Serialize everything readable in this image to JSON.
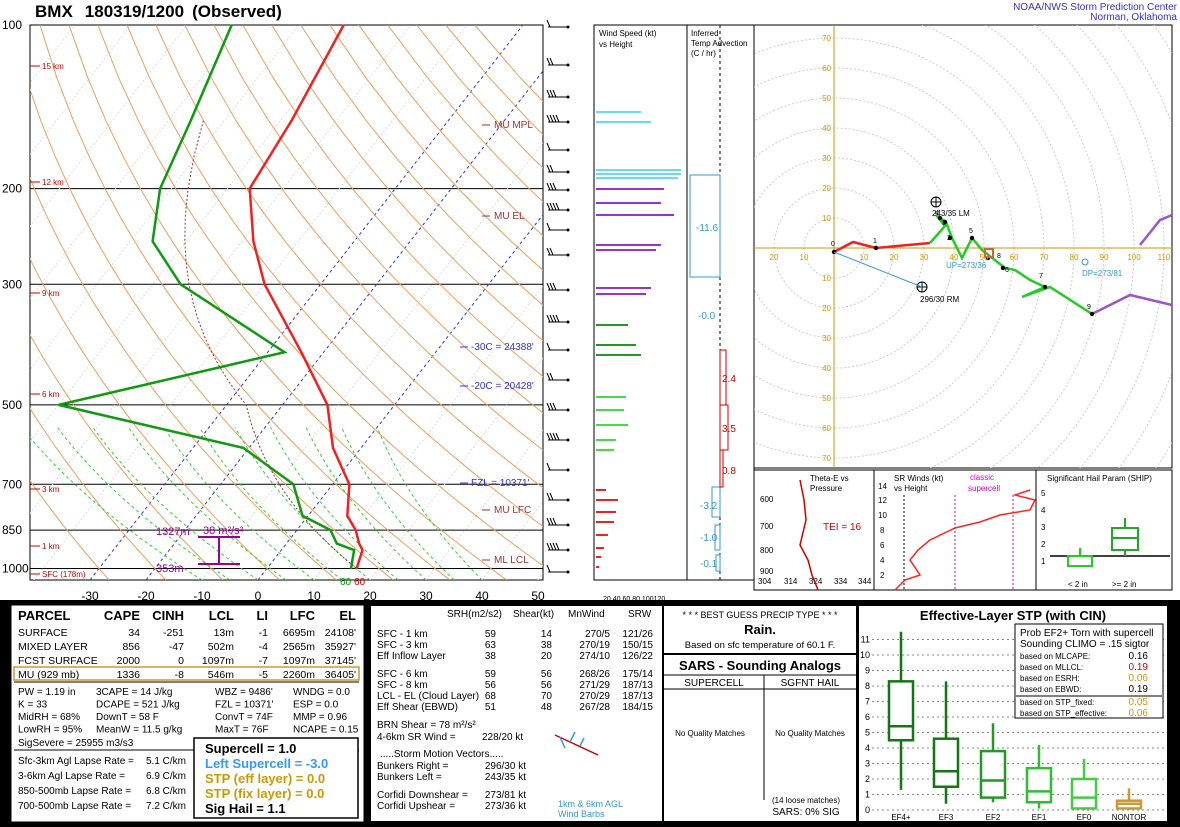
{
  "header": {
    "station": "BMX",
    "datetime": "180319/1200",
    "status": "(Observed)",
    "source_line1": "NOAA/NWS Storm Prediction Center",
    "source_line2": "Norman, Oklahoma"
  },
  "skewt": {
    "pressure_labels": [
      "100",
      "200",
      "300",
      "500",
      "700",
      "850",
      "1000"
    ],
    "height_labels": [
      "15 km",
      "12 km",
      "9 km",
      "6 km",
      "3 km",
      "1 km",
      "SFC (178m)"
    ],
    "temp_ticks": [
      "-30",
      "-20",
      "-10",
      "0",
      "10",
      "20",
      "30",
      "40",
      "50"
    ],
    "annotations": {
      "mu_mpl": "MU MPL",
      "mu_el": "MU EL",
      "m30c": "-30C = 24388'",
      "m20c": "-20C = 20428'",
      "fzl": "FZL = 10371'",
      "mu_lfc": "MU LFC",
      "ml_lcl": "ML LCL"
    },
    "eff_inflow": {
      "top": "1327m",
      "bottom": "353m",
      "value": "38 m²/s²"
    },
    "sfc_td": "60",
    "sfc_t": "60"
  },
  "wind_speed_panel": {
    "title1": "Wind Speed (kt)",
    "title2": "vs Height",
    "axis": "20 40 60 80 100120"
  },
  "temp_adv_panel": {
    "title1": "Inferred",
    "title2": "Temp Advection",
    "title3": "(C / hr)",
    "values": [
      "-11.6",
      "-0.0",
      "2.4",
      "3.5",
      "0.8",
      "-3.2",
      "-1.0",
      "-0.1"
    ]
  },
  "hodograph": {
    "ring_labels": [
      "10",
      "20",
      "30",
      "40",
      "50",
      "60",
      "70"
    ],
    "x_labels": [
      "20",
      "10",
      "10",
      "20",
      "30",
      "40",
      "50",
      "60",
      "70",
      "80",
      "90",
      "100",
      "110"
    ],
    "rm": "296/30 RM",
    "lm": "243/35 LM",
    "up": "UP=273/36",
    "dp": "DP=273/81"
  },
  "theta_panel": {
    "title1": "Theta-E vs",
    "title2": "Pressure",
    "tei": "TEI = 16",
    "y_labels": [
      "900",
      "800",
      "700",
      "600"
    ],
    "x_labels": [
      "304",
      "314",
      "324",
      "334",
      "344"
    ]
  },
  "srwinds_panel": {
    "title1": "SR Winds (kt)",
    "title2": "vs Height",
    "classic1": "classic",
    "classic2": "supercell",
    "y_labels": [
      "14",
      "12",
      "10",
      "8",
      "6",
      "4",
      "2"
    ]
  },
  "ship_panel": {
    "title": "Significant Hail Param (SHIP)",
    "x_labels": [
      "< 2 in",
      ">= 2 in"
    ],
    "y_labels": [
      "5",
      "4",
      "3",
      "2",
      "1"
    ]
  },
  "parcel_table": {
    "headers": [
      "PARCEL",
      "CAPE",
      "CINH",
      "LCL",
      "LI",
      "LFC",
      "EL"
    ],
    "rows": [
      [
        "SURFACE",
        "34",
        "-251",
        "13m",
        "-1",
        "6695m",
        "24108'"
      ],
      [
        "MIXED LAYER",
        "856",
        "-47",
        "502m",
        "-4",
        "2565m",
        "35927'"
      ],
      [
        "FCST SURFACE",
        "2000",
        "0",
        "1097m",
        "-7",
        "1097m",
        "37145'"
      ],
      [
        "MU  (929 mb)",
        "1336",
        "-8",
        "546m",
        "-5",
        "2260m",
        "36405'"
      ]
    ]
  },
  "thermo_params": [
    [
      "PW = 1.19 in",
      "3CAPE = 14 J/kg",
      "WBZ = 9486'",
      "WNDG = 0.0"
    ],
    [
      "K = 33",
      "DCAPE = 521 J/kg",
      "FZL = 10371'",
      "ESP = 0.0"
    ],
    [
      "MidRH = 68%",
      "DownT = 58 F",
      "ConvT = 74F",
      "MMP = 0.96"
    ],
    [
      "LowRH = 95%",
      "MeanW = 11.5 g/kg",
      "MaxT = 76F",
      "NCAPE = 0.15"
    ]
  ],
  "sigsevere": "SigSevere = 25955 m3/s3",
  "lapse_rates": [
    [
      "Sfc-3km Agl Lapse Rate =",
      "5.1 C/km"
    ],
    [
      "3-6km Agl Lapse Rate =",
      "6.9 C/km"
    ],
    [
      "850-500mb Lapse Rate =",
      "6.8 C/km"
    ],
    [
      "700-500mb Lapse Rate =",
      "7.2 C/km"
    ]
  ],
  "composite": {
    "supercell": "Supercell = 1.0",
    "left_supercell": "Left Supercell = -3.0",
    "stp_eff": "STP (eff layer) = 0.0",
    "stp_fix": "STP (fix layer) = 0.0",
    "sig_hail": "Sig Hail = 1.1"
  },
  "kinematics": {
    "headers": [
      "SRH(m2/s2)",
      "Shear(kt)",
      "MnWind",
      "SRW"
    ],
    "rows": [
      [
        "SFC - 1 km",
        "59",
        "14",
        "270/5",
        "121/26"
      ],
      [
        "SFC - 3 km",
        "63",
        "38",
        "270/19",
        "150/15"
      ],
      [
        "Eff Inflow Layer",
        "38",
        "20",
        "274/10",
        "126/22"
      ],
      [
        "SFC - 6 km",
        "59",
        "56",
        "268/26",
        "175/14"
      ],
      [
        "SFC - 8 km",
        "56",
        "56",
        "271/29",
        "187/13"
      ],
      [
        "LCL - EL (Cloud Layer)",
        "68",
        "70",
        "270/29",
        "187/13"
      ],
      [
        "Eff Shear (EBWD)",
        "51",
        "48",
        "267/28",
        "184/15"
      ]
    ],
    "brn_shear": "BRN Shear =  78 m²/s²",
    "sr_wind_label": "4-6km SR Wind =",
    "sr_wind": "228/20 kt",
    "storm_vectors_title": ".....Storm Motion Vectors.....",
    "vectors": [
      [
        "Bunkers Right =",
        "296/30 kt"
      ],
      [
        "Bunkers Left =",
        "243/35 kt"
      ],
      [
        "Corfidi Downshear =",
        "273/81 kt"
      ],
      [
        "Corfidi Upshear =",
        "273/36 kt"
      ]
    ],
    "barbs_note1": "1km & 6km AGL",
    "barbs_note2": "Wind Barbs"
  },
  "precip": {
    "title": "* * * BEST GUESS PRECIP TYPE * * *",
    "type": "Rain.",
    "note": "Based on sfc temperature of 60.1 F."
  },
  "sars": {
    "title": "SARS - Sounding Analogs",
    "col1": "SUPERCELL",
    "col2": "SGFNT HAIL",
    "col1_val": "No Quality Matches",
    "col2_val": "No Quality Matches",
    "loose": "(14 loose matches)",
    "sig": "SARS:  0% SIG"
  },
  "stp_panel": {
    "title": "Effective-Layer STP (with CIN)",
    "prob_title1": "Prob EF2+ Torn with supercell",
    "prob_title2": "Sounding CLIMO = .15 sigtor",
    "probs": [
      [
        "based on MLCAPE:",
        "0.16"
      ],
      [
        "based on MLLCL:",
        "0.19"
      ],
      [
        "based on ESRH:",
        "0.06"
      ],
      [
        "based on EBWD:",
        "0.19"
      ],
      [
        "based on STP_fixed:",
        "0.05"
      ],
      [
        "based on STP_effective:",
        "0.06"
      ]
    ],
    "y_labels": [
      "11",
      "10",
      "9",
      "8",
      "7",
      "6",
      "5",
      "4",
      "3",
      "2",
      "1",
      "0"
    ],
    "x_labels": [
      "EF4+",
      "EF3",
      "EF2",
      "EF1",
      "EF0",
      "NONTOR"
    ]
  },
  "chart_data": {
    "type": "line",
    "title": "BMX 180319/1200 (Observed)",
    "xlabel": "",
    "ylabel": "",
    "ylim": [
      1000,
      100
    ],
    "xlim": [
      -30,
      50
    ],
    "series": [
      {
        "name": "",
        "pressure": [
          1000,
          925,
          900,
          850,
          800,
          700,
          600,
          500,
          400,
          300,
          250,
          200,
          150,
          100
        ],
        "values": [
          16,
          14.5,
          13,
          10.5,
          7,
          3,
          -5,
          -12,
          -24,
          -40,
          -48,
          -56,
          -58,
          -62
        ]
      },
      {
        "name": "",
        "pressure": [
          1000,
          925,
          900,
          850,
          800,
          700,
          600,
          500,
          400,
          300,
          250,
          200,
          150,
          100
        ],
        "values": [
          15,
          13,
          9,
          6,
          -1,
          -7,
          -21,
          -60,
          -27,
          -55,
          -66,
          -72,
          -76,
          -82
        ]
      }
    ]
  }
}
